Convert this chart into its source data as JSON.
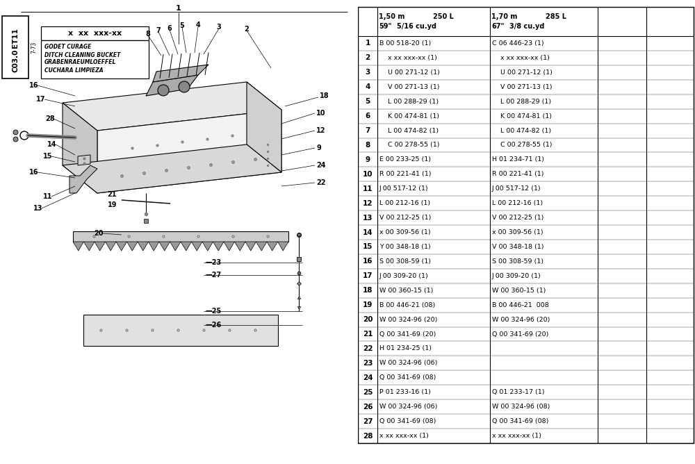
{
  "bg_color": "#ffffff",
  "rows": [
    {
      "num": "1",
      "c1": "B 00 518-20 (1)",
      "c2": "C 06 446-23 (1)"
    },
    {
      "num": "2",
      "c1": "    x xx xxx-xx (1)",
      "c2": "    x xx xxx-xx (1)"
    },
    {
      "num": "3",
      "c1": "    U 00 271-12 (1)",
      "c2": "    U 00 271-12 (1)"
    },
    {
      "num": "4",
      "c1": "    V 00 271-13 (1)",
      "c2": "    V 00 271-13 (1)"
    },
    {
      "num": "5",
      "c1": "    L 00 288-29 (1)",
      "c2": "    L 00 288-29 (1)"
    },
    {
      "num": "6",
      "c1": "    K 00 474-81 (1)",
      "c2": "    K 00 474-81 (1)"
    },
    {
      "num": "7",
      "c1": "    L 00 474-82 (1)",
      "c2": "    L 00 474-82 (1)"
    },
    {
      "num": "8",
      "c1": "    C 00 278-55 (1)",
      "c2": "    C 00 278-55 (1)"
    },
    {
      "num": "9",
      "c1": "E 00 233-25 (1)",
      "c2": "H 01 234-71 (1)"
    },
    {
      "num": "10",
      "c1": "R 00 221-41 (1)",
      "c2": "R 00 221-41 (1)"
    },
    {
      "num": "11",
      "c1": "J 00 517-12 (1)",
      "c2": "J 00 517-12 (1)"
    },
    {
      "num": "12",
      "c1": "L 00 212-16 (1)",
      "c2": "L 00 212-16 (1)"
    },
    {
      "num": "13",
      "c1": "V 00 212-25 (1)",
      "c2": "V 00 212-25 (1)"
    },
    {
      "num": "14",
      "c1": "x 00 309-56 (1)",
      "c2": "x 00 309-56 (1)"
    },
    {
      "num": "15",
      "c1": "Y 00 348-18 (1)",
      "c2": "V 00 348-18 (1)"
    },
    {
      "num": "16",
      "c1": "S 00 308-59 (1)",
      "c2": "S 00 308-59 (1)"
    },
    {
      "num": "17",
      "c1": "J 00 309-20 (1)",
      "c2": "J 00 309-20 (1)"
    },
    {
      "num": "18",
      "c1": "W 00 360-15 (1)",
      "c2": "W 00 360-15 (1)"
    },
    {
      "num": "19",
      "c1": "B 00 446-21 (08)",
      "c2": "B 00 446-21  008"
    },
    {
      "num": "20",
      "c1": "W 00 324-96 (20)",
      "c2": "W 00 324-96 (20)"
    },
    {
      "num": "21",
      "c1": "Q 00 341-69 (20)",
      "c2": "Q 00 341-69 (20)"
    },
    {
      "num": "22",
      "c1": "H 01 234-25 (1)",
      "c2": ""
    },
    {
      "num": "23",
      "c1": "W 00 324-96 (06)",
      "c2": ""
    },
    {
      "num": "24",
      "c1": "Q 00 341-69 (08)",
      "c2": ""
    },
    {
      "num": "25",
      "c1": "P 01 233-16 (1)",
      "c2": "Q 01 233-17 (1)"
    },
    {
      "num": "26",
      "c1": "W 00 324-96 (06)",
      "c2": "W 00 324-96 (08)"
    },
    {
      "num": "27",
      "c1": "Q 00 341-69 (08)",
      "c2": "Q 00 341-69 (08)"
    },
    {
      "num": "28",
      "c1": "x xx xxx-xx (1)",
      "c2": "x xx xxx-xx (1)"
    }
  ],
  "legend_lines": [
    "GODET CURAGE",
    "DITCH CLEANING BUCKET",
    "GRABENRAEUMLOEFFEL",
    "CUCHARA LIMPIEZA"
  ],
  "et_code": "ET11 C03.0",
  "date_code": "7-73"
}
